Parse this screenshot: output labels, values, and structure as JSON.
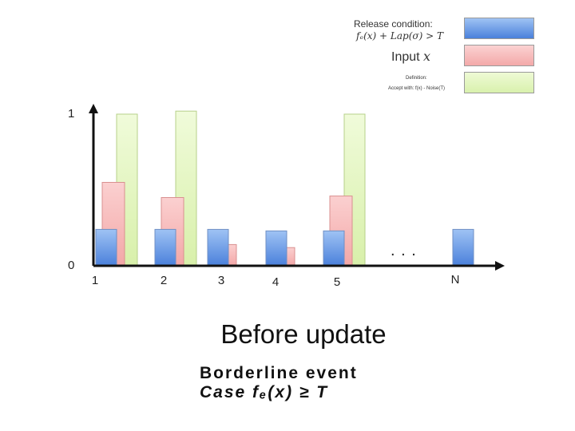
{
  "legend": {
    "release_label": "Release condition:",
    "release_formula": "fₑ(x) + Lap(σ) > T",
    "input_label": "Input",
    "input_var": "x",
    "small_title": "Definition:",
    "small_text": "Accept with: f(x) - Noise(T)",
    "colors": {
      "blue": "#5b8fe0",
      "red": "#f6b5b5",
      "green": "#e3f5bf"
    }
  },
  "axis": {
    "y_top_label": "1",
    "y_zero_label": "0",
    "ellipsis": ". . ."
  },
  "chart_data": {
    "type": "bar",
    "categories": [
      "1",
      "2",
      "3",
      "4",
      "5",
      "N"
    ],
    "series": [
      {
        "color": "#5b8fe0",
        "values": [
          0.24,
          0.24,
          0.24,
          0.23,
          0.23,
          0.24
        ]
      },
      {
        "color": "#f6b5b5",
        "values": [
          0.55,
          0.45,
          0.14,
          0.12,
          0.46,
          null
        ]
      },
      {
        "color": "#e3f5bf",
        "values": [
          1.0,
          1.02,
          null,
          null,
          1.0,
          null
        ]
      }
    ],
    "ylim": [
      0,
      1
    ]
  },
  "caption": "Before update",
  "borderline": {
    "line1": "Borderline event",
    "line2": "Case  fₑ(x)  ≥  T"
  }
}
